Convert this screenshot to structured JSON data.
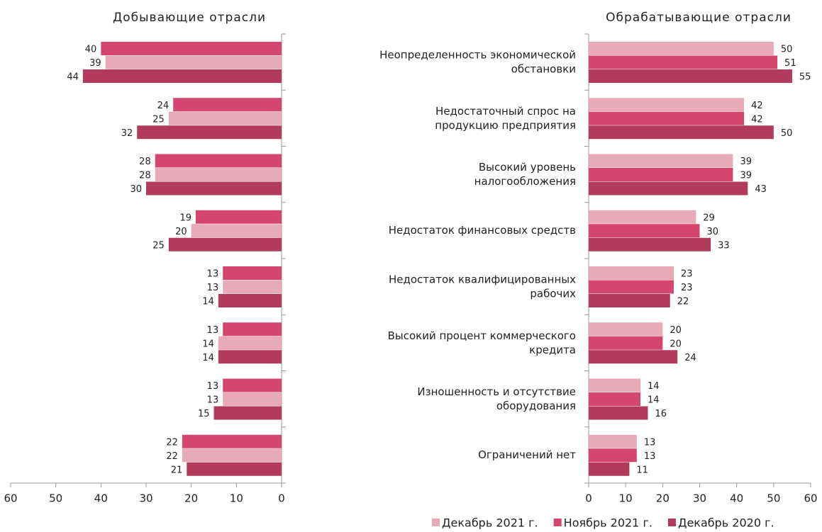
{
  "chart_data": [
    {
      "type": "bar",
      "orientation": "horizontal",
      "title": "Добывающие отрасли",
      "categories": [
        null,
        null,
        null,
        null,
        null,
        null,
        null,
        null
      ],
      "x_reversed": true,
      "xlim": [
        0,
        60
      ],
      "xticks": [
        0,
        10,
        20,
        30,
        40,
        50,
        60
      ],
      "series": [
        {
          "color": "#d4456f",
          "values": [
            40,
            24,
            28,
            19,
            13,
            13,
            13,
            22
          ]
        },
        {
          "color": "#e8a9b9",
          "values": [
            39,
            25,
            28,
            20,
            13,
            14,
            13,
            22
          ]
        },
        {
          "color": "#b23a5c",
          "values": [
            44,
            32,
            30,
            25,
            14,
            14,
            15,
            21
          ]
        }
      ]
    },
    {
      "type": "bar",
      "orientation": "horizontal",
      "title": "Обрабатывающие отрасли",
      "categories": [
        "Неопределенность экономической\nобстановки",
        "Недостаточный спрос на\nпродукцию предприятия",
        "Высокий уровень\nналогообложения",
        "Недостаток финансовых средств",
        "Недостаток квалифицированных\nрабочих",
        "Высокий процент коммерческого\nкредита",
        "Изношенность и отсутствие\nоборудования",
        "Ограничений нет"
      ],
      "x_reversed": false,
      "xlim": [
        0,
        60
      ],
      "xticks": [
        0,
        10,
        20,
        30,
        40,
        50,
        60
      ],
      "series": [
        {
          "name": "Декабрь 2021 г.",
          "color": "#e8a9b9",
          "values": [
            50,
            42,
            39,
            29,
            23,
            20,
            14,
            13
          ]
        },
        {
          "name": "Ноябрь 2021 г.",
          "color": "#d4456f",
          "values": [
            51,
            42,
            39,
            30,
            23,
            20,
            14,
            13
          ]
        },
        {
          "name": "Декабрь 2020 г.",
          "color": "#b23a5c",
          "values": [
            55,
            50,
            43,
            33,
            22,
            24,
            16,
            11
          ]
        }
      ]
    }
  ]
}
